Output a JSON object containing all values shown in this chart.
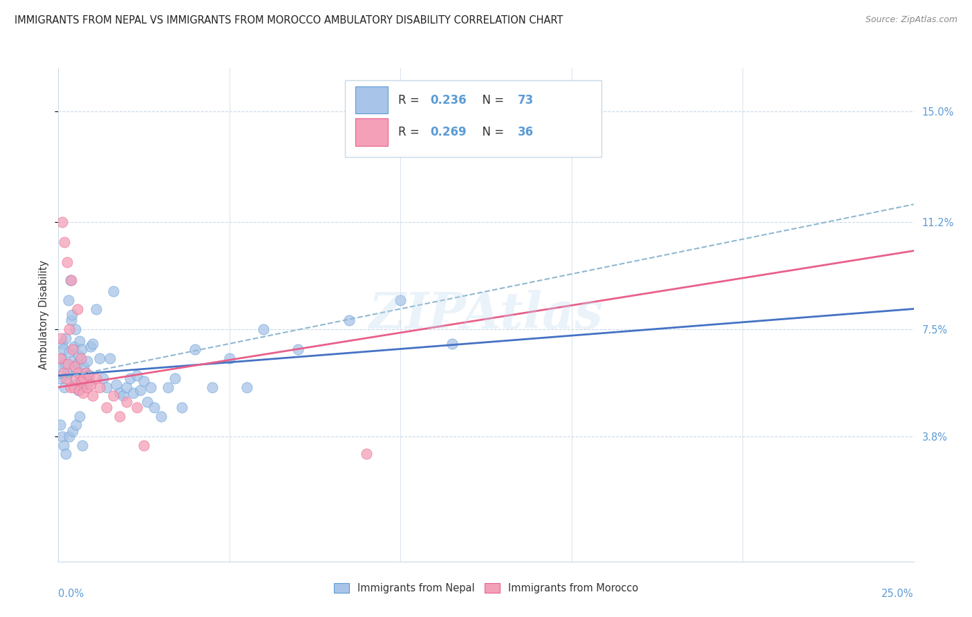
{
  "title": "IMMIGRANTS FROM NEPAL VS IMMIGRANTS FROM MOROCCO AMBULATORY DISABILITY CORRELATION CHART",
  "source": "Source: ZipAtlas.com",
  "ylabel": "Ambulatory Disability",
  "ytick_labels": [
    "3.8%",
    "7.5%",
    "11.2%",
    "15.0%"
  ],
  "ytick_values": [
    3.8,
    7.5,
    11.2,
    15.0
  ],
  "xlim": [
    0.0,
    25.0
  ],
  "ylim": [
    -0.5,
    16.5
  ],
  "nepal_color": "#a8c4e8",
  "morocco_color": "#f4a0b8",
  "nepal_edge_color": "#5b9bd5",
  "morocco_edge_color": "#e8608a",
  "nepal_line_color": "#4472c4",
  "morocco_line_color": "#e8608a",
  "dashed_line_color": "#90b8d0",
  "nepal_R": 0.236,
  "nepal_N": 73,
  "morocco_R": 0.269,
  "morocco_N": 36,
  "watermark": "ZIPAtlas",
  "legend_label_nepal": "Immigrants from Nepal",
  "legend_label_morocco": "Immigrants from Morocco",
  "nepal_line_start_y": 5.9,
  "nepal_line_end_y": 8.2,
  "morocco_line_start_y": 5.5,
  "morocco_line_end_y": 10.2,
  "dashed_line_start_y": 5.8,
  "dashed_line_end_y": 11.8,
  "nepal_scatter_x": [
    0.05,
    0.08,
    0.1,
    0.12,
    0.15,
    0.18,
    0.2,
    0.22,
    0.25,
    0.28,
    0.3,
    0.32,
    0.35,
    0.38,
    0.4,
    0.42,
    0.45,
    0.48,
    0.5,
    0.52,
    0.55,
    0.58,
    0.6,
    0.62,
    0.65,
    0.68,
    0.7,
    0.75,
    0.8,
    0.85,
    0.9,
    0.95,
    1.0,
    1.1,
    1.2,
    1.3,
    1.4,
    1.5,
    1.6,
    1.7,
    1.8,
    1.9,
    2.0,
    2.1,
    2.2,
    2.3,
    2.4,
    2.5,
    2.6,
    2.7,
    2.8,
    3.0,
    3.2,
    3.4,
    3.6,
    4.0,
    4.5,
    5.0,
    5.5,
    6.0,
    7.0,
    8.5,
    10.0,
    11.5,
    0.06,
    0.11,
    0.16,
    0.21,
    0.31,
    0.41,
    0.51,
    0.61,
    0.71
  ],
  "nepal_scatter_y": [
    6.2,
    5.8,
    6.5,
    7.0,
    6.8,
    5.5,
    6.3,
    7.2,
    5.9,
    6.0,
    8.5,
    6.7,
    9.2,
    7.8,
    8.0,
    6.4,
    6.9,
    5.6,
    7.5,
    6.1,
    6.3,
    5.4,
    6.6,
    7.1,
    5.8,
    6.8,
    5.5,
    6.2,
    6.0,
    6.4,
    5.7,
    6.9,
    7.0,
    8.2,
    6.5,
    5.8,
    5.5,
    6.5,
    8.8,
    5.6,
    5.3,
    5.2,
    5.5,
    5.8,
    5.3,
    5.9,
    5.4,
    5.7,
    5.0,
    5.5,
    4.8,
    4.5,
    5.5,
    5.8,
    4.8,
    6.8,
    5.5,
    6.5,
    5.5,
    7.5,
    6.8,
    7.8,
    8.5,
    7.0,
    4.2,
    3.8,
    3.5,
    3.2,
    3.8,
    4.0,
    4.2,
    4.5,
    3.5
  ],
  "morocco_scatter_x": [
    0.05,
    0.08,
    0.12,
    0.15,
    0.18,
    0.22,
    0.25,
    0.28,
    0.32,
    0.35,
    0.38,
    0.42,
    0.45,
    0.48,
    0.52,
    0.55,
    0.58,
    0.62,
    0.65,
    0.68,
    0.72,
    0.75,
    0.8,
    0.85,
    0.9,
    0.95,
    1.0,
    1.1,
    1.2,
    1.4,
    1.6,
    1.8,
    2.0,
    2.3,
    2.5,
    9.0
  ],
  "morocco_scatter_y": [
    6.5,
    7.2,
    11.2,
    6.0,
    10.5,
    5.8,
    9.8,
    6.3,
    7.5,
    5.5,
    9.2,
    6.8,
    5.5,
    6.2,
    5.8,
    8.2,
    6.0,
    5.4,
    6.5,
    5.7,
    5.3,
    5.8,
    6.0,
    5.5,
    5.9,
    5.6,
    5.2,
    5.8,
    5.5,
    4.8,
    5.2,
    4.5,
    5.0,
    4.8,
    3.5,
    3.2
  ]
}
